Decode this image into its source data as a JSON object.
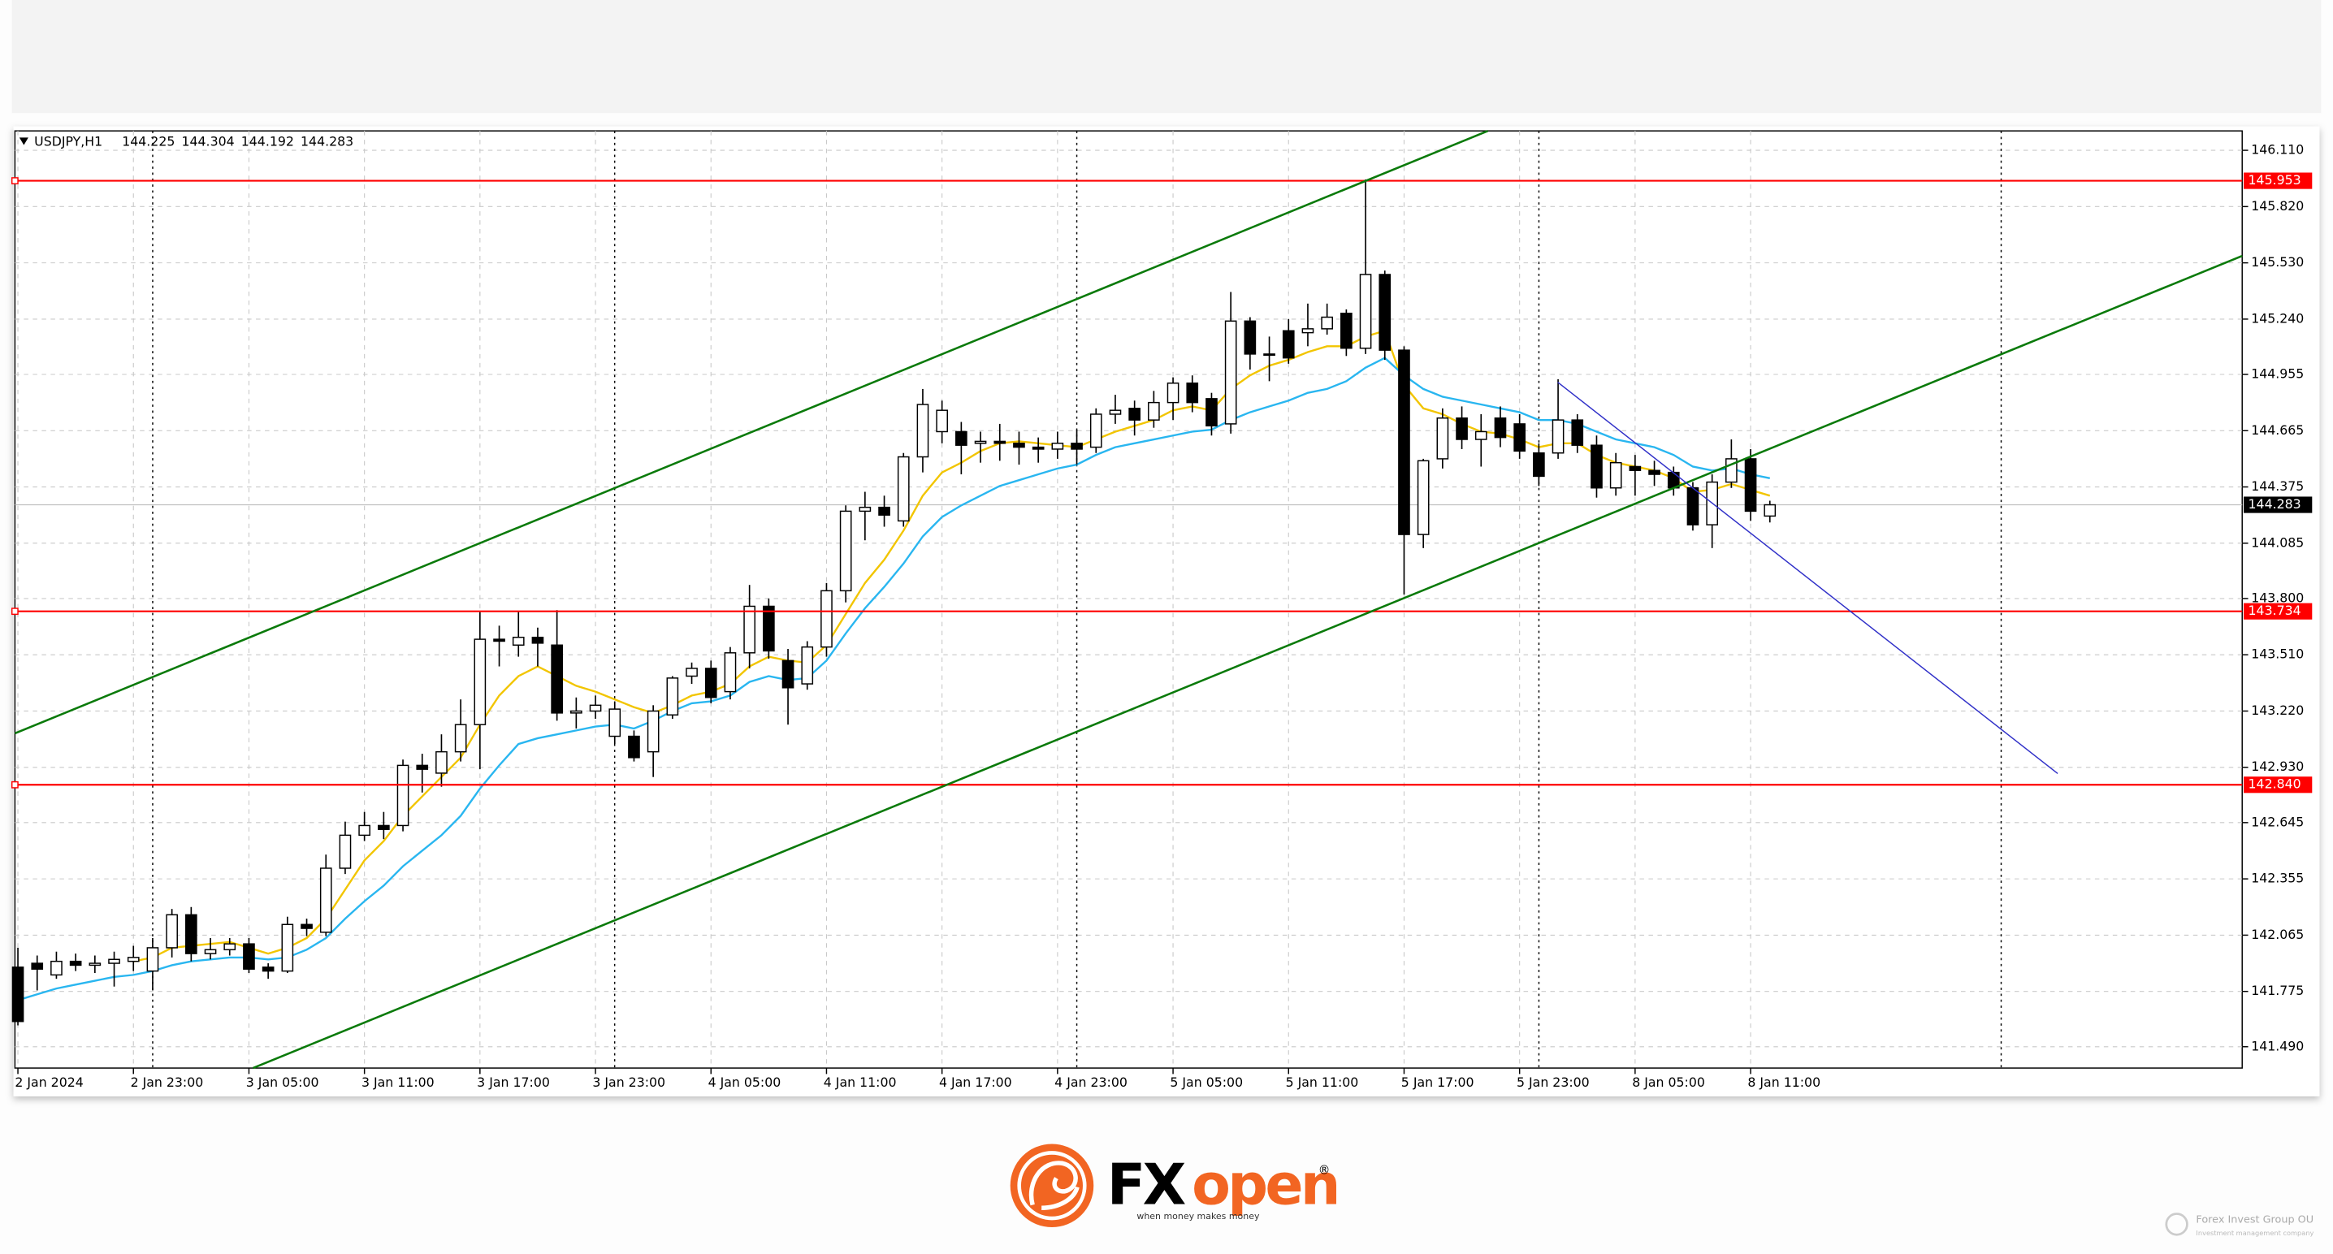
{
  "chart_data": {
    "type": "candlestick",
    "title": "USDJPY,H1",
    "categories": [
      "2 Jan 2024",
      null,
      null,
      null,
      null,
      null,
      "2 Jan 23:00",
      null,
      null,
      null,
      null,
      null,
      "3 Jan 05:00",
      null,
      null,
      null,
      null,
      null,
      "3 Jan 11:00",
      null,
      null,
      null,
      null,
      null,
      "3 Jan 17:00",
      null,
      null,
      null,
      null,
      null,
      "3 Jan 23:00",
      null,
      null,
      null,
      null,
      null,
      "4 Jan 05:00",
      null,
      null,
      null,
      null,
      null,
      "4 Jan 11:00",
      null,
      null,
      null,
      null,
      null,
      "4 Jan 17:00",
      null,
      null,
      null,
      null,
      null,
      "4 Jan 23:00",
      null,
      null,
      null,
      null,
      null,
      "5 Jan 05:00",
      null,
      null,
      null,
      null,
      null,
      "5 Jan 11:00",
      null,
      null,
      null,
      null,
      null,
      "5 Jan 17:00",
      null,
      null,
      null,
      null,
      null,
      "5 Jan 23:00",
      null,
      null,
      null,
      null,
      null,
      "8 Jan 05:00",
      null,
      null,
      null,
      null,
      null,
      "8 Jan 11:00",
      null
    ],
    "open": [
      141.9,
      141.92,
      141.86,
      141.93,
      141.91,
      141.92,
      141.93,
      141.88,
      142.0,
      142.17,
      141.97,
      141.99,
      142.02,
      141.9,
      141.88,
      142.12,
      142.08,
      142.41,
      142.58,
      142.63,
      142.63,
      142.94,
      142.9,
      143.01,
      143.15,
      143.59,
      143.56,
      143.6,
      143.56,
      143.21,
      143.22,
      143.09,
      143.09,
      143.01,
      143.2,
      143.4,
      143.44,
      143.32,
      143.52,
      143.76,
      143.48,
      143.36,
      143.55,
      143.84,
      144.25,
      144.27,
      144.2,
      144.53,
      144.66,
      144.66,
      144.6,
      144.61,
      144.6,
      144.58,
      144.57,
      144.6,
      144.58,
      144.75,
      144.78,
      144.72,
      144.81,
      144.91,
      144.83,
      144.7,
      145.23,
      145.06,
      145.18,
      145.17,
      145.19,
      145.27,
      145.09,
      145.47,
      145.08,
      144.13,
      144.52,
      144.73,
      144.62,
      144.73,
      144.7,
      144.55,
      144.55,
      144.72,
      144.59,
      144.37,
      144.48,
      144.46,
      144.45,
      144.37,
      144.18,
      144.4,
      144.52,
      144.225
    ],
    "high": [
      142.0,
      141.96,
      141.98,
      141.97,
      141.96,
      141.98,
      142.01,
      142.05,
      142.2,
      142.21,
      142.05,
      142.05,
      142.05,
      141.92,
      142.16,
      142.15,
      142.48,
      142.65,
      142.7,
      142.7,
      142.97,
      143.0,
      143.1,
      143.28,
      143.73,
      143.66,
      143.73,
      143.65,
      143.74,
      143.29,
      143.3,
      143.27,
      143.12,
      143.25,
      143.4,
      143.47,
      143.48,
      143.55,
      143.87,
      143.8,
      143.54,
      143.58,
      143.88,
      144.28,
      144.35,
      144.33,
      144.55,
      144.88,
      144.82,
      144.71,
      144.66,
      144.7,
      144.66,
      144.63,
      144.66,
      144.67,
      144.78,
      144.85,
      144.82,
      144.87,
      144.94,
      144.95,
      144.86,
      145.38,
      145.25,
      145.15,
      145.24,
      145.32,
      145.32,
      145.29,
      145.96,
      145.49,
      145.1,
      144.52,
      144.78,
      144.79,
      144.75,
      144.79,
      144.75,
      144.6,
      144.93,
      144.75,
      144.64,
      144.55,
      144.54,
      144.51,
      144.48,
      144.4,
      144.44,
      144.62,
      144.57,
      144.304
    ],
    "low": [
      141.6,
      141.78,
      141.84,
      141.88,
      141.87,
      141.8,
      141.88,
      141.78,
      141.95,
      141.93,
      141.94,
      141.96,
      141.87,
      141.84,
      141.87,
      142.06,
      142.06,
      142.38,
      142.55,
      142.56,
      142.6,
      142.8,
      142.83,
      142.96,
      142.92,
      143.45,
      143.5,
      143.45,
      143.17,
      143.13,
      143.18,
      143.05,
      142.96,
      142.88,
      143.18,
      143.36,
      143.26,
      143.28,
      143.44,
      143.49,
      143.15,
      143.33,
      143.5,
      143.78,
      144.1,
      144.17,
      144.17,
      144.45,
      144.6,
      144.44,
      144.5,
      144.51,
      144.49,
      144.5,
      144.52,
      144.49,
      144.55,
      144.7,
      144.64,
      144.68,
      144.72,
      144.76,
      144.64,
      144.65,
      144.98,
      144.92,
      145.01,
      145.1,
      145.16,
      145.05,
      145.06,
      145.03,
      143.82,
      144.06,
      144.47,
      144.57,
      144.48,
      144.58,
      144.52,
      144.38,
      144.52,
      144.55,
      144.32,
      144.33,
      144.33,
      144.38,
      144.33,
      144.15,
      144.06,
      144.37,
      144.2,
      144.192
    ],
    "close": [
      141.62,
      141.89,
      141.93,
      141.91,
      141.92,
      141.94,
      141.95,
      142.0,
      142.17,
      141.97,
      141.99,
      142.02,
      141.89,
      141.88,
      142.12,
      142.1,
      142.41,
      142.58,
      142.63,
      142.61,
      142.94,
      142.92,
      143.01,
      143.15,
      143.59,
      143.58,
      143.6,
      143.57,
      143.21,
      143.22,
      143.25,
      143.23,
      142.98,
      143.22,
      143.39,
      143.44,
      143.29,
      143.52,
      143.76,
      143.53,
      143.34,
      143.55,
      143.84,
      144.25,
      144.27,
      144.23,
      144.53,
      144.8,
      144.77,
      144.59,
      144.61,
      144.6,
      144.58,
      144.57,
      144.6,
      144.57,
      144.75,
      144.77,
      144.72,
      144.81,
      144.91,
      144.81,
      144.69,
      145.23,
      145.06,
      145.06,
      145.04,
      145.19,
      145.25,
      145.09,
      145.47,
      145.08,
      144.13,
      144.51,
      144.73,
      144.62,
      144.66,
      144.63,
      144.56,
      144.43,
      144.72,
      144.59,
      144.37,
      144.5,
      144.46,
      144.44,
      144.37,
      144.18,
      144.4,
      144.52,
      144.25,
      144.283
    ],
    "lines": [
      {
        "color": "#f2c500",
        "values": [
          null,
          null,
          null,
          null,
          null,
          null,
          141.93,
          141.95,
          142.0,
          142.01,
          142.02,
          142.03,
          142.0,
          141.97,
          142.0,
          142.05,
          142.15,
          142.3,
          142.45,
          142.55,
          142.68,
          142.78,
          142.88,
          142.98,
          143.15,
          143.3,
          143.4,
          143.45,
          143.4,
          143.35,
          143.32,
          143.28,
          143.24,
          143.21,
          143.25,
          143.3,
          143.32,
          143.36,
          143.45,
          143.5,
          143.48,
          143.47,
          143.56,
          143.72,
          143.88,
          144.0,
          144.15,
          144.33,
          144.45,
          144.5,
          144.56,
          144.6,
          144.61,
          144.6,
          144.59,
          144.58,
          144.62,
          144.66,
          144.69,
          144.72,
          144.77,
          144.79,
          144.77,
          144.88,
          144.95,
          145.0,
          145.03,
          145.07,
          145.1,
          145.1,
          145.15,
          145.18,
          144.9,
          144.78,
          144.75,
          144.7,
          144.66,
          144.65,
          144.62,
          144.58,
          144.6,
          144.6,
          144.54,
          144.5,
          144.48,
          144.46,
          144.42,
          144.35,
          144.36,
          144.39,
          144.36,
          144.33
        ]
      },
      {
        "color": "#29b6f0",
        "values": [
          141.73,
          141.76,
          141.79,
          141.81,
          141.83,
          141.85,
          141.86,
          141.88,
          141.91,
          141.93,
          141.94,
          141.95,
          141.95,
          141.94,
          141.95,
          141.99,
          142.05,
          142.15,
          142.24,
          142.32,
          142.42,
          142.5,
          142.58,
          142.68,
          142.82,
          142.94,
          143.05,
          143.08,
          143.1,
          143.12,
          143.14,
          143.15,
          143.13,
          143.17,
          143.22,
          143.26,
          143.27,
          143.3,
          143.37,
          143.4,
          143.38,
          143.39,
          143.48,
          143.62,
          143.75,
          143.86,
          143.98,
          144.12,
          144.22,
          144.28,
          144.33,
          144.38,
          144.41,
          144.44,
          144.47,
          144.49,
          144.54,
          144.58,
          144.6,
          144.62,
          144.64,
          144.66,
          144.67,
          144.72,
          144.76,
          144.79,
          144.82,
          144.86,
          144.88,
          144.92,
          144.99,
          145.04,
          144.95,
          144.88,
          144.84,
          144.82,
          144.8,
          144.78,
          144.76,
          144.72,
          144.72,
          144.7,
          144.66,
          144.62,
          144.6,
          144.58,
          144.54,
          144.48,
          144.46,
          144.47,
          144.44,
          144.42
        ]
      }
    ],
    "levels": [
      {
        "value": 145.953
      },
      {
        "value": 143.734
      },
      {
        "value": 142.84,
        "label": "142.840"
      }
    ],
    "level_color": "#ff0000",
    "ylim": [
      141.38,
      146.21
    ],
    "yticks": [
      {
        "value": 146.11,
        "label": "146.110"
      },
      {
        "value": 145.82,
        "label": "145.820"
      },
      {
        "value": 145.53,
        "label": "145.530"
      },
      {
        "value": 145.24,
        "label": "145.240"
      },
      144.955,
      144.665,
      144.375,
      144.085,
      {
        "value": 143.8,
        "label": "143.800"
      },
      {
        "value": 143.51,
        "label": "143.510"
      },
      {
        "value": 143.22,
        "label": "143.220"
      },
      {
        "value": 142.93,
        "label": "142.930"
      },
      142.645,
      142.355,
      142.065,
      141.775,
      {
        "value": 141.49,
        "label": "141.490"
      }
    ],
    "grid": true
  },
  "branding": {
    "logo_fx": "FX",
    "logo_open": "open",
    "registered": "®",
    "tagline": "when money makes money",
    "watermark": "Forex Invest Group OU",
    "watermark_sub": "Investment management company"
  }
}
